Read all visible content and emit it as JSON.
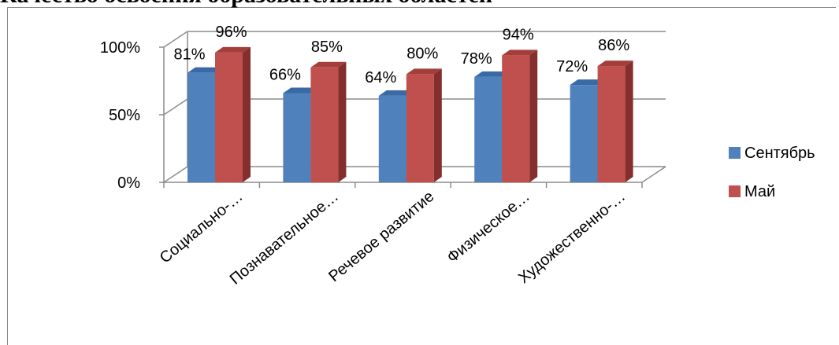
{
  "chart_data": {
    "type": "bar",
    "title": "Качество освоения образовательных областей",
    "categories": [
      "Социально-…",
      "Познавательное…",
      "Речевое развитие",
      "Физическое…",
      "Художественно-…"
    ],
    "series": [
      {
        "name": "Сентябрь",
        "values": [
          81,
          66,
          64,
          78,
          72
        ],
        "color": "#4f81bd",
        "color_side": "#2c5184",
        "color_top": "#3a6aa6"
      },
      {
        "name": "Май",
        "values": [
          96,
          85,
          80,
          94,
          86
        ],
        "color": "#c0504d",
        "color_side": "#842f2d",
        "color_top": "#a43e3b"
      }
    ],
    "data_labels": [
      [
        "81%",
        "66%",
        "64%",
        "78%",
        "72%"
      ],
      [
        "96%",
        "85%",
        "80%",
        "94%",
        "86%"
      ]
    ],
    "y_ticks": [
      "0%",
      "50%",
      "100%"
    ],
    "y_tick_values": [
      0,
      50,
      100
    ],
    "ylim": [
      0,
      100
    ],
    "grid": true,
    "legend_position": "right",
    "style": "3d-column"
  }
}
